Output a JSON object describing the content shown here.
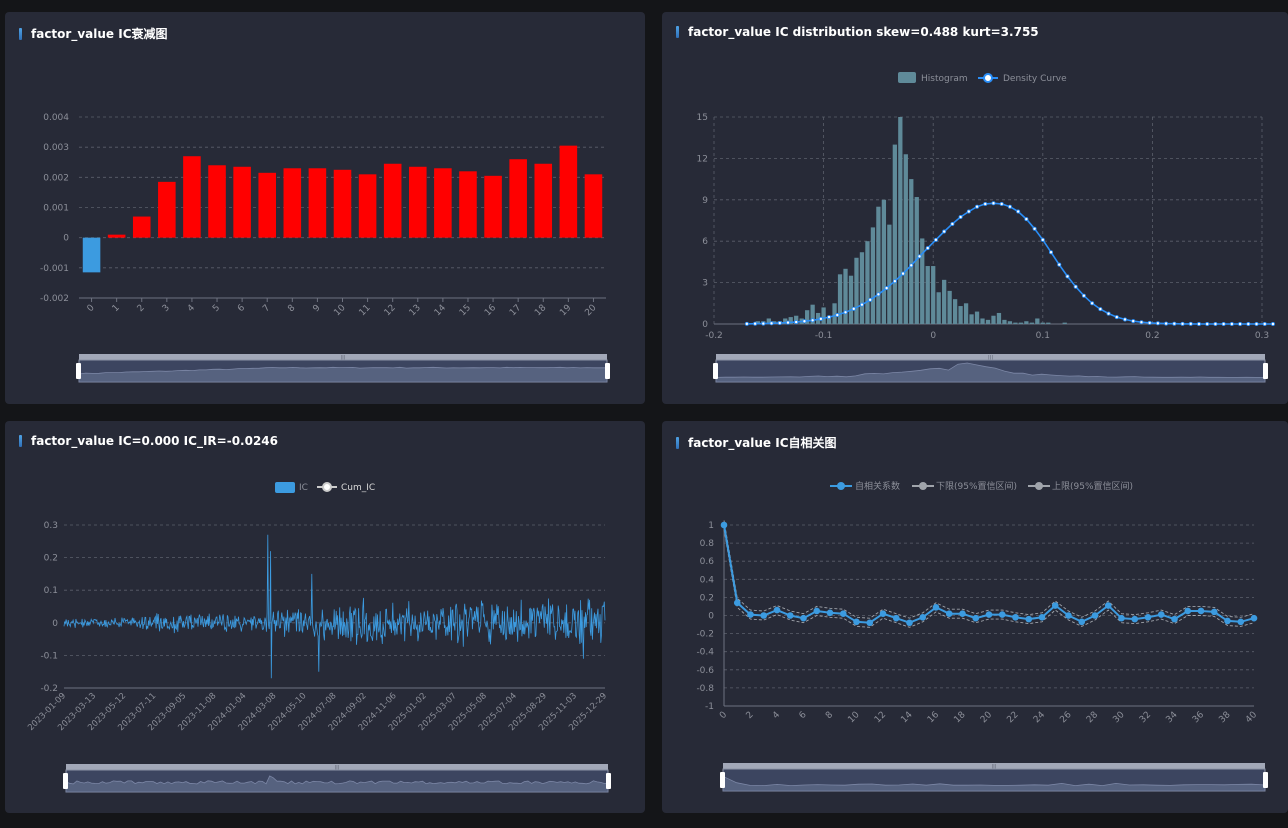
{
  "panels": {
    "decay": {
      "title": "factor_value IC衰减图"
    },
    "dist": {
      "title": "factor_value IC distribution skew=0.488 kurt=3.755"
    },
    "ic": {
      "title": "factor_value IC=0.000 IC_IR=-0.0246"
    },
    "acf": {
      "title": "factor_value IC自相关图"
    }
  },
  "colors": {
    "positive_bar": "#ff0000",
    "negative_bar": "#3c9be0",
    "histogram": "#5f8a99",
    "density": "#2a8ef7",
    "ic_line": "#3c9be0",
    "acf_line": "#3c9be0",
    "bounds": "#a0a4ab"
  },
  "chart_data": [
    {
      "type": "bar",
      "title": "factor_value IC衰减图",
      "categories": [
        "0",
        "1",
        "2",
        "3",
        "4",
        "5",
        "6",
        "7",
        "8",
        "9",
        "10",
        "11",
        "12",
        "13",
        "14",
        "15",
        "16",
        "17",
        "18",
        "19",
        "20"
      ],
      "values": [
        -0.00115,
        0.0001,
        0.0007,
        0.00185,
        0.0027,
        0.0024,
        0.00235,
        0.00215,
        0.0023,
        0.0023,
        0.00225,
        0.0021,
        0.00245,
        0.00235,
        0.0023,
        0.0022,
        0.00205,
        0.0026,
        0.00245,
        0.00305,
        0.0021
      ],
      "ylim": [
        -0.002,
        0.004
      ],
      "yticks": [
        "-0.002",
        "-0.001",
        "0",
        "0.001",
        "0.002",
        "0.003",
        "0.004"
      ],
      "grid": true,
      "data_zoom": true
    },
    {
      "type": "bar",
      "title": "factor_value IC distribution skew=0.488 kurt=3.755",
      "legend": [
        "Histogram",
        "Density Curve"
      ],
      "series": [
        {
          "name": "Histogram",
          "type": "bar",
          "x": [
            -0.165,
            -0.16,
            -0.155,
            -0.15,
            -0.145,
            -0.14,
            -0.135,
            -0.13,
            -0.125,
            -0.12,
            -0.115,
            -0.11,
            -0.105,
            -0.1,
            -0.095,
            -0.09,
            -0.085,
            -0.08,
            -0.075,
            -0.07,
            -0.065,
            -0.06,
            -0.055,
            -0.05,
            -0.045,
            -0.04,
            -0.035,
            -0.03,
            -0.025,
            -0.02,
            -0.015,
            -0.01,
            -0.005,
            0,
            0.005,
            0.01,
            0.015,
            0.02,
            0.025,
            0.03,
            0.035,
            0.04,
            0.045,
            0.05,
            0.055,
            0.06,
            0.065,
            0.07,
            0.075,
            0.08,
            0.085,
            0.09,
            0.095,
            0.1,
            0.105,
            0.11,
            0.115,
            0.12,
            0.125,
            0.13,
            0.135,
            0.14,
            0.145,
            0.15,
            0.155,
            0.16,
            0.165,
            0.17,
            0.175,
            0.18,
            0.185,
            0.19,
            0.195,
            0.2,
            0.205,
            0.21,
            0.215,
            0.22,
            0.225,
            0.23,
            0.235,
            0.24,
            0.245,
            0.25,
            0.255,
            0.26,
            0.265,
            0.27,
            0.275
          ],
          "values": [
            0,
            0.2,
            0.2,
            0.4,
            0.2,
            0.2,
            0.4,
            0.5,
            0.6,
            0.4,
            1.0,
            1.4,
            0.8,
            1.2,
            0.6,
            1.5,
            3.6,
            4.0,
            3.5,
            4.8,
            5.2,
            6.0,
            7.0,
            8.5,
            9.0,
            7.2,
            13.0,
            15.0,
            12.3,
            10.5,
            9.2,
            6.2,
            4.2,
            4.2,
            2.3,
            3.2,
            2.4,
            1.8,
            1.3,
            1.5,
            0.7,
            0.9,
            0.4,
            0.3,
            0.6,
            0.8,
            0.3,
            0.2,
            0.1,
            0.1,
            0.2,
            0.1,
            0.4,
            0.1,
            0.1,
            0,
            0,
            0.1,
            0,
            0,
            0,
            0,
            0,
            0,
            0,
            0,
            0,
            0,
            0,
            0,
            0,
            0,
            0,
            0,
            0,
            0,
            0,
            0,
            0,
            0,
            0,
            0,
            0,
            0,
            0,
            0,
            0,
            0,
            0
          ]
        },
        {
          "name": "Density Curve",
          "type": "line",
          "x_start": -0.17,
          "x_step": 0.0075,
          "values": [
            0.01,
            0.02,
            0.03,
            0.05,
            0.07,
            0.1,
            0.14,
            0.2,
            0.27,
            0.37,
            0.5,
            0.65,
            0.85,
            1.1,
            1.4,
            1.75,
            2.15,
            2.6,
            3.1,
            3.65,
            4.25,
            4.9,
            5.5,
            6.1,
            6.7,
            7.25,
            7.75,
            8.15,
            8.5,
            8.7,
            8.75,
            8.7,
            8.5,
            8.15,
            7.6,
            6.9,
            6.1,
            5.2,
            4.3,
            3.45,
            2.7,
            2.05,
            1.5,
            1.08,
            0.75,
            0.5,
            0.33,
            0.21,
            0.13,
            0.08,
            0.05,
            0.03,
            0.02,
            0.01,
            0.01,
            0.0,
            0.0,
            0.0,
            0.0,
            0.0,
            0.0,
            0.0,
            0.0,
            0.0,
            0.0
          ]
        }
      ],
      "xlim": [
        -0.2,
        0.3
      ],
      "xticks": [
        "-0.2",
        "-0.1",
        "0",
        "0.1",
        "0.2",
        "0.3"
      ],
      "ylim": [
        0,
        15
      ],
      "yticks": [
        "0",
        "3",
        "6",
        "9",
        "12",
        "15"
      ],
      "grid": true,
      "data_zoom": true
    },
    {
      "type": "line",
      "title": "factor_value IC=0.000 IC_IR=-0.0246",
      "legend": [
        "IC",
        "Cum_IC"
      ],
      "x_start": "2023-01-09",
      "x_end": "2025-12-29",
      "xticks": [
        "2023-01-09",
        "2023-03-13",
        "2023-05-12",
        "2023-07-11",
        "2023-09-05",
        "2023-11-08",
        "2024-01-04",
        "2024-03-08",
        "2024-05-10",
        "2024-07-08",
        "2024-09-02",
        "2024-11-06",
        "2025-01-02",
        "2025-03-07",
        "2025-05-08",
        "2025-07-04",
        "2025-08-29",
        "2025-11-03",
        "2025-12-29"
      ],
      "ylim": [
        -0.2,
        0.3
      ],
      "yticks": [
        "-0.2",
        "-0.1",
        "0",
        "0.1",
        "0.2",
        "0.3"
      ],
      "amplitude_profile": [
        0.015,
        0.018,
        0.02,
        0.03,
        0.04,
        0.035,
        0.03,
        0.05,
        0.06,
        0.07,
        0.09,
        0.085,
        0.06,
        0.08,
        0.09,
        0.07,
        0.08,
        0.085,
        0.08
      ],
      "peaks": [
        {
          "date": "2024-02-22",
          "value": 0.27
        },
        {
          "date": "2024-02-27",
          "value": 0.22
        },
        {
          "date": "2024-02-29",
          "value": -0.17
        },
        {
          "date": "2024-05-20",
          "value": 0.15
        },
        {
          "date": "2024-06-03",
          "value": -0.15
        },
        {
          "date": "2025-11-15",
          "value": -0.11
        }
      ],
      "grid": true,
      "data_zoom": true
    },
    {
      "type": "line",
      "title": "factor_value IC自相关图",
      "legend": [
        "自相关系数",
        "下限(95%置信区间)",
        "上限(95%置信区间)"
      ],
      "categories": [
        "0",
        "1",
        "2",
        "3",
        "4",
        "5",
        "6",
        "7",
        "8",
        "9",
        "10",
        "11",
        "12",
        "13",
        "14",
        "15",
        "16",
        "17",
        "18",
        "19",
        "20",
        "21",
        "22",
        "23",
        "24",
        "25",
        "26",
        "27",
        "28",
        "29",
        "30",
        "31",
        "32",
        "33",
        "34",
        "35",
        "36",
        "37",
        "38",
        "39",
        "40"
      ],
      "xticks": [
        "0",
        "2",
        "4",
        "6",
        "8",
        "10",
        "12",
        "14",
        "16",
        "18",
        "20",
        "22",
        "24",
        "26",
        "28",
        "30",
        "32",
        "34",
        "36",
        "38",
        "40"
      ],
      "series": [
        {
          "name": "自相关系数",
          "values": [
            1.0,
            0.14,
            0.01,
            0.0,
            0.06,
            0.0,
            -0.03,
            0.05,
            0.03,
            0.02,
            -0.07,
            -0.08,
            0.02,
            -0.03,
            -0.08,
            -0.02,
            0.09,
            0.02,
            0.02,
            -0.03,
            0.01,
            0.01,
            -0.02,
            -0.04,
            -0.02,
            0.11,
            0.0,
            -0.07,
            0.0,
            0.11,
            -0.03,
            -0.04,
            -0.02,
            0.01,
            -0.04,
            0.05,
            0.05,
            0.04,
            -0.06,
            -0.07,
            -0.03
          ]
        },
        {
          "name": "下限(95%置信区间)",
          "values": [
            0.95,
            0.09,
            -0.04,
            -0.05,
            0.01,
            -0.05,
            -0.08,
            0.0,
            -0.02,
            -0.03,
            -0.12,
            -0.13,
            -0.03,
            -0.08,
            -0.13,
            -0.07,
            0.04,
            -0.03,
            -0.03,
            -0.08,
            -0.04,
            -0.04,
            -0.07,
            -0.09,
            -0.07,
            0.06,
            -0.05,
            -0.12,
            -0.05,
            0.06,
            -0.08,
            -0.09,
            -0.07,
            -0.04,
            -0.09,
            0.0,
            0.0,
            -0.01,
            -0.11,
            -0.12,
            -0.08
          ]
        },
        {
          "name": "上限(95%置信区间)",
          "values": [
            1.05,
            0.19,
            0.06,
            0.05,
            0.11,
            0.05,
            0.02,
            0.1,
            0.08,
            0.07,
            -0.02,
            -0.03,
            0.07,
            0.02,
            -0.03,
            0.03,
            0.14,
            0.07,
            0.07,
            0.02,
            0.06,
            0.06,
            0.03,
            0.01,
            0.03,
            0.16,
            0.05,
            -0.02,
            0.05,
            0.16,
            0.02,
            0.01,
            0.03,
            0.06,
            0.01,
            0.1,
            0.1,
            0.09,
            -0.01,
            -0.02,
            0.02
          ]
        }
      ],
      "ylim": [
        -1,
        1
      ],
      "yticks": [
        "-1",
        "-0.8",
        "-0.6",
        "-0.4",
        "-0.2",
        "0",
        "0.2",
        "0.4",
        "0.6",
        "0.8",
        "1"
      ],
      "grid": true,
      "data_zoom": true
    }
  ]
}
